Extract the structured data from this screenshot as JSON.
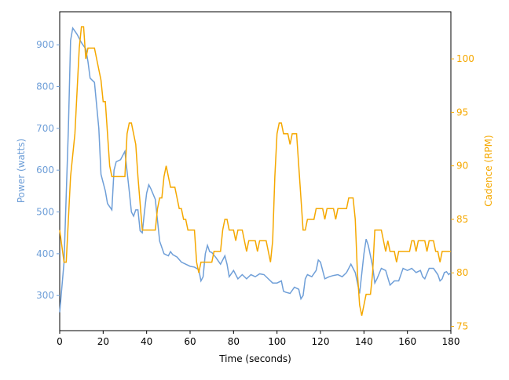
{
  "chart_data": {
    "type": "line",
    "x_label": "Time (seconds)",
    "y_label": "Power (watts)",
    "y2_label": "Cadence (RPM)",
    "xlim": [
      0,
      180
    ],
    "xticks": [
      0,
      20,
      40,
      60,
      80,
      100,
      120,
      140,
      160,
      180
    ],
    "ylim": [
      216,
      979
    ],
    "yticks": [
      300,
      400,
      500,
      600,
      700,
      800,
      900
    ],
    "y2lim": [
      74.6,
      104.4
    ],
    "y2ticks": [
      75,
      80,
      85,
      90,
      95,
      100
    ],
    "y_color": "#6f9fd8",
    "y2_color": "#f5a800",
    "series": [
      {
        "color": "#6f9fd8",
        "axis": "y",
        "x": [
          0,
          2,
          4,
          5,
          6,
          8,
          10,
          12,
          13,
          14,
          16,
          18,
          19,
          21,
          22,
          24,
          25,
          26,
          28,
          30,
          32,
          33,
          34,
          35,
          36,
          37,
          38,
          39,
          40,
          41,
          42,
          44,
          46,
          48,
          50,
          51,
          52,
          54,
          56,
          58,
          60,
          62,
          64,
          65,
          66,
          67,
          68,
          69,
          70,
          72,
          74,
          76,
          77,
          78,
          80,
          82,
          84,
          86,
          88,
          90,
          92,
          94,
          96,
          98,
          100,
          102,
          103,
          104,
          106,
          108,
          110,
          111,
          112,
          113,
          114,
          116,
          118,
          119,
          120,
          122,
          124,
          126,
          128,
          130,
          132,
          134,
          136,
          138,
          140,
          141,
          142,
          144,
          145,
          146,
          148,
          150,
          152,
          154,
          156,
          158,
          160,
          162,
          164,
          166,
          167,
          168,
          170,
          172,
          174,
          175,
          176,
          177,
          178,
          179,
          180
        ],
        "values": [
          260,
          380,
          700,
          910,
          940,
          925,
          905,
          890,
          860,
          820,
          810,
          700,
          590,
          550,
          520,
          505,
          600,
          620,
          625,
          645,
          550,
          500,
          490,
          505,
          505,
          455,
          450,
          500,
          545,
          565,
          555,
          530,
          430,
          400,
          395,
          405,
          398,
          392,
          380,
          375,
          370,
          368,
          362,
          335,
          345,
          400,
          420,
          405,
          403,
          390,
          375,
          395,
          375,
          345,
          360,
          340,
          350,
          340,
          350,
          345,
          352,
          350,
          340,
          330,
          330,
          335,
          310,
          308,
          305,
          320,
          315,
          292,
          300,
          340,
          350,
          345,
          360,
          385,
          380,
          340,
          345,
          348,
          350,
          345,
          355,
          375,
          355,
          305,
          400,
          435,
          420,
          370,
          330,
          340,
          365,
          360,
          325,
          335,
          335,
          365,
          360,
          365,
          355,
          360,
          345,
          340,
          365,
          365,
          350,
          335,
          340,
          355,
          357,
          350,
          355
        ]
      },
      {
        "color": "#f5a800",
        "axis": "y2",
        "x": [
          0,
          2,
          3,
          5,
          7,
          9,
          10,
          11,
          12,
          13,
          16,
          17,
          19,
          20,
          21,
          22,
          23,
          24,
          26,
          30,
          31,
          32,
          33,
          35,
          36,
          38,
          39,
          44,
          45,
          46,
          47,
          48,
          49,
          50,
          51,
          53,
          54,
          55,
          56,
          57,
          58,
          59,
          62,
          63,
          64,
          65,
          70,
          71,
          74,
          75,
          76,
          77,
          78,
          80,
          81,
          82,
          84,
          85,
          86,
          87,
          90,
          91,
          92,
          95,
          96,
          97,
          98,
          99,
          100,
          101,
          102,
          103,
          105,
          106,
          107,
          109,
          110,
          111,
          112,
          113,
          114,
          117,
          118,
          121,
          122,
          123,
          126,
          127,
          128,
          132,
          133,
          135,
          136,
          137,
          138,
          139,
          140,
          141,
          143,
          144,
          145,
          148,
          149,
          150,
          151,
          152,
          154,
          155,
          156,
          161,
          162,
          163,
          164,
          165,
          168,
          169,
          170,
          172,
          173,
          174,
          175,
          176,
          180
        ],
        "values": [
          84,
          81,
          81,
          89,
          93,
          101,
          103,
          103,
          100,
          101,
          101,
          100,
          98,
          96,
          96,
          93,
          90,
          89,
          89,
          89,
          93,
          94,
          94,
          92,
          89,
          84,
          84,
          84,
          86,
          87,
          87,
          89,
          90,
          89,
          88,
          88,
          87,
          86,
          86,
          85,
          85,
          84,
          84,
          81,
          80,
          81,
          81,
          82,
          82,
          84,
          85,
          85,
          84,
          84,
          83,
          84,
          84,
          83,
          82,
          83,
          83,
          82,
          83,
          83,
          82,
          81,
          83,
          89,
          93,
          94,
          94,
          93,
          93,
          92,
          93,
          93,
          90,
          87,
          84,
          84,
          85,
          85,
          86,
          86,
          85,
          86,
          86,
          85,
          86,
          86,
          87,
          87,
          85,
          80,
          77,
          76,
          77,
          78,
          78,
          80,
          84,
          84,
          83,
          82,
          83,
          82,
          82,
          81,
          82,
          82,
          83,
          83,
          82,
          83,
          83,
          82,
          83,
          83,
          82,
          82,
          81,
          82,
          82
        ]
      }
    ]
  }
}
